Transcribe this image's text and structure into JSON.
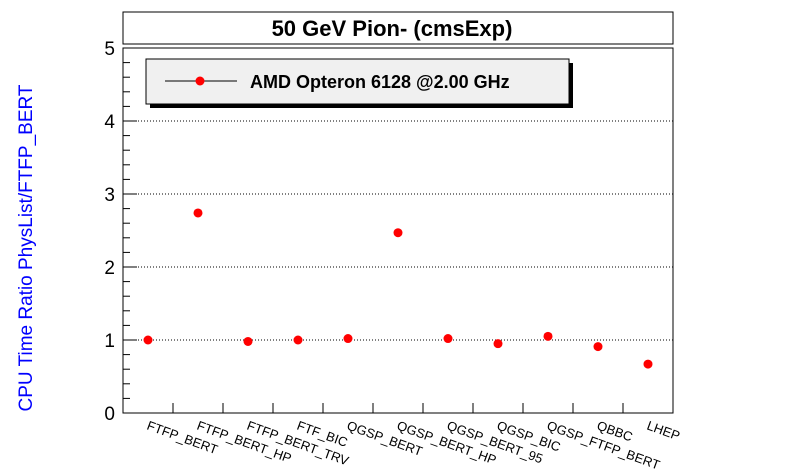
{
  "chart_data": {
    "type": "scatter",
    "title": "50 GeV Pion- (cmsExp)",
    "xlabel": "",
    "ylabel": "CPU Time Ratio PhysList/FTFP_BERT",
    "ylim": [
      0,
      5
    ],
    "yticks": [
      "0",
      "1",
      "2",
      "3",
      "4",
      "5"
    ],
    "grid": "horizontal dotted",
    "legend_position": "top-left",
    "categories": [
      "FTFP_BERT",
      "FTFP_BERT_HP",
      "FTFP_BERT_TRV",
      "FTF_BIC",
      "QGSP_BERT",
      "QGSP_BERT_HP",
      "QGSP_BERT_95",
      "QGSP_BIC",
      "QGSP_FTFP_BERT",
      "QBBC",
      "LHEP"
    ],
    "series": [
      {
        "name": "AMD Opteron 6128 @2.00 GHz",
        "color": "#ff0000",
        "values": [
          1.0,
          2.74,
          0.98,
          1.0,
          1.02,
          2.47,
          1.02,
          0.95,
          1.05,
          0.91,
          0.67
        ]
      }
    ]
  }
}
